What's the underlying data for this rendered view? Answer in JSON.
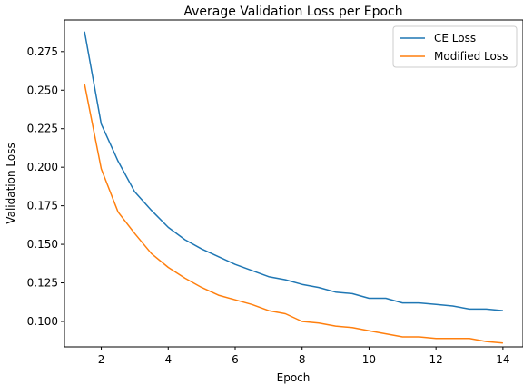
{
  "chart_data": {
    "type": "line",
    "title": "Average Validation Loss per Epoch",
    "xlabel": "Epoch",
    "ylabel": "Validation Loss",
    "xlim": [
      0.9,
      14.6
    ],
    "ylim": [
      0.0835,
      0.2955
    ],
    "xticks": [
      2,
      4,
      6,
      8,
      10,
      12,
      14
    ],
    "xtick_labels": [
      "2",
      "4",
      "6",
      "8",
      "10",
      "12",
      "14"
    ],
    "yticks": [
      0.1,
      0.125,
      0.15,
      0.175,
      0.2,
      0.225,
      0.25,
      0.275
    ],
    "ytick_labels": [
      "0.100",
      "0.125",
      "0.150",
      "0.175",
      "0.200",
      "0.225",
      "0.250",
      "0.275"
    ],
    "grid": false,
    "legend_position": "top-right",
    "x": [
      1.5,
      2.0,
      2.5,
      3.0,
      3.5,
      4.0,
      4.5,
      5.0,
      5.5,
      6.0,
      6.5,
      7.0,
      7.5,
      8.0,
      8.5,
      9.0,
      9.5,
      10.0,
      10.5,
      11.0,
      11.5,
      12.0,
      12.5,
      13.0,
      13.5,
      14.0
    ],
    "series": [
      {
        "name": "CE Loss",
        "color": "#1f77b4",
        "values": [
          0.288,
          0.228,
          0.204,
          0.184,
          0.172,
          0.161,
          0.153,
          0.147,
          0.142,
          0.137,
          0.133,
          0.129,
          0.127,
          0.124,
          0.122,
          0.119,
          0.118,
          0.115,
          0.115,
          0.112,
          0.112,
          0.111,
          0.11,
          0.108,
          0.108,
          0.107
        ]
      },
      {
        "name": "Modified Loss",
        "color": "#ff7f0e",
        "values": [
          0.254,
          0.199,
          0.171,
          0.157,
          0.144,
          0.135,
          0.128,
          0.122,
          0.117,
          0.114,
          0.111,
          0.107,
          0.105,
          0.1,
          0.099,
          0.097,
          0.096,
          0.094,
          0.092,
          0.09,
          0.09,
          0.089,
          0.089,
          0.089,
          0.087,
          0.086
        ]
      }
    ]
  }
}
